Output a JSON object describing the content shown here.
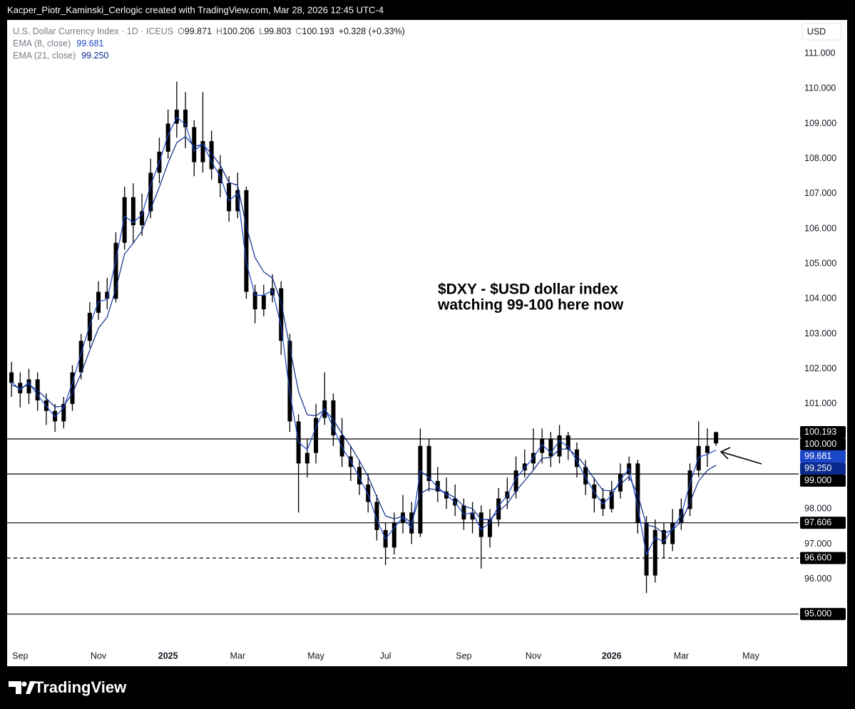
{
  "header": {
    "text": "Kacper_Piotr_Kaminski_Cerlogic created with TradingView.com, Mar 28, 2026 12:45 UTC-4"
  },
  "footer": {
    "logo": "TradingView"
  },
  "chart_data": {
    "type": "candlestick",
    "legend": {
      "symbol": "U.S. Dollar Currency Index · 1D · ICEUS",
      "open_prefix": "O",
      "high_prefix": "H",
      "low_prefix": "L",
      "close_prefix": "C",
      "change": "+0.328 (+0.33%)"
    },
    "currency": "USD",
    "annotation": [
      "$DXY - $USD dollar index",
      "watching 99-100 here now"
    ],
    "color": "#000000",
    "grid": false,
    "categories": [
      null,
      "Sep",
      null,
      null,
      null,
      null,
      null,
      null,
      null,
      null,
      "Nov",
      null,
      null,
      null,
      null,
      null,
      null,
      null,
      "2025",
      null,
      null,
      null,
      null,
      null,
      null,
      null,
      "Mar",
      null,
      null,
      null,
      null,
      null,
      null,
      null,
      null,
      "May",
      null,
      null,
      null,
      null,
      null,
      null,
      null,
      "Jul",
      null,
      null,
      null,
      null,
      null,
      null,
      null,
      null,
      "Sep",
      null,
      null,
      null,
      null,
      null,
      null,
      null,
      "Nov",
      null,
      null,
      null,
      null,
      null,
      null,
      null,
      null,
      "2026",
      null,
      null,
      null,
      null,
      null,
      null,
      null,
      "Mar",
      null,
      null,
      null,
      null,
      null,
      null,
      null,
      "May",
      null,
      null,
      null,
      null,
      null
    ],
    "open": [
      101.9,
      101.6,
      101.3,
      101.7,
      101.1,
      100.8,
      100.5,
      101.0,
      101.9,
      102.8,
      103.6,
      104.2,
      104.0,
      105.6,
      106.9,
      106.1,
      106.5,
      107.6,
      108.2,
      109.0,
      109.4,
      108.9,
      107.9,
      108.5,
      107.7,
      107.3,
      106.5,
      107.1,
      104.2,
      103.7,
      104.1,
      104.3,
      102.8,
      100.5,
      99.3,
      99.6,
      100.6,
      101.1,
      100.1,
      99.5,
      99.2,
      98.7,
      98.2,
      97.4,
      96.9,
      97.6,
      97.9,
      97.3,
      99.8,
      98.8,
      98.5,
      98.3,
      98.1,
      97.7,
      97.9,
      97.2,
      97.7,
      98.3,
      98.5,
      99.1,
      99.3,
      99.6,
      100.0,
      99.5,
      100.1,
      99.7,
      99.2,
      98.7,
      98.3,
      98.0,
      98.5,
      99.0,
      99.3,
      97.6,
      96.1,
      97.4,
      97.0,
      97.6,
      98.0,
      99.1,
      99.8,
      99.871,
      null,
      null,
      null,
      null,
      null,
      null,
      null,
      null,
      null
    ],
    "high": [
      102.2,
      101.9,
      102.0,
      101.9,
      101.3,
      101.0,
      101.2,
      102.1,
      103.0,
      103.9,
      104.5,
      104.6,
      105.9,
      107.2,
      107.3,
      107.0,
      108.0,
      108.6,
      109.4,
      110.2,
      109.9,
      109.1,
      109.9,
      108.8,
      108.1,
      107.5,
      107.6,
      107.2,
      104.4,
      104.4,
      104.7,
      104.5,
      103.0,
      100.7,
      100.0,
      101.0,
      101.9,
      101.3,
      100.6,
      99.8,
      99.4,
      99.0,
      98.4,
      97.6,
      97.9,
      98.4,
      98.2,
      100.3,
      100.0,
      99.2,
      98.9,
      98.7,
      98.3,
      98.2,
      98.1,
      98.0,
      98.6,
      98.9,
      99.5,
      99.7,
      100.3,
      100.3,
      100.2,
      100.4,
      100.2,
      99.9,
      99.4,
      98.9,
      98.6,
      98.8,
      99.3,
      99.5,
      99.4,
      97.8,
      97.7,
      97.6,
      98.0,
      98.3,
      99.3,
      100.5,
      100.3,
      100.206,
      null,
      null,
      null,
      null,
      null,
      null,
      null,
      null,
      null
    ],
    "low": [
      101.2,
      100.9,
      101.0,
      100.8,
      100.4,
      100.2,
      100.3,
      100.8,
      101.7,
      102.6,
      103.4,
      103.7,
      103.9,
      105.4,
      105.6,
      105.8,
      106.3,
      107.3,
      108.0,
      108.6,
      108.3,
      107.5,
      107.6,
      107.4,
      106.9,
      106.2,
      106.3,
      104.0,
      103.3,
      103.5,
      103.9,
      102.4,
      100.2,
      97.9,
      98.9,
      99.3,
      100.4,
      99.8,
      99.2,
      98.8,
      98.4,
      97.9,
      97.1,
      96.4,
      96.7,
      97.3,
      97.0,
      97.2,
      98.5,
      98.2,
      98.0,
      97.8,
      97.4,
      97.3,
      96.3,
      96.9,
      97.5,
      98.0,
      98.3,
      98.9,
      99.1,
      99.3,
      99.2,
      99.3,
      99.4,
      98.9,
      98.4,
      97.9,
      97.8,
      97.9,
      98.3,
      98.8,
      97.3,
      95.6,
      95.9,
      96.6,
      96.8,
      97.4,
      97.8,
      98.9,
      99.2,
      99.803,
      null,
      null,
      null,
      null,
      null,
      null,
      null,
      null,
      null
    ],
    "close": [
      101.6,
      101.3,
      101.7,
      101.1,
      100.8,
      100.5,
      101.0,
      101.9,
      102.8,
      103.6,
      104.2,
      104.0,
      105.6,
      106.9,
      106.1,
      106.5,
      107.6,
      108.2,
      109.0,
      109.4,
      108.9,
      107.9,
      108.5,
      107.7,
      107.3,
      106.5,
      107.1,
      104.2,
      103.7,
      104.1,
      104.3,
      102.8,
      100.5,
      99.3,
      99.6,
      100.6,
      101.1,
      100.1,
      99.5,
      99.2,
      98.7,
      98.2,
      97.4,
      96.9,
      97.6,
      97.9,
      97.3,
      99.8,
      98.8,
      98.5,
      98.3,
      98.1,
      97.7,
      97.9,
      97.2,
      97.7,
      98.3,
      98.5,
      99.1,
      99.3,
      99.6,
      100.0,
      99.5,
      100.1,
      99.7,
      99.2,
      98.7,
      98.3,
      98.0,
      98.5,
      99.0,
      99.3,
      97.6,
      96.1,
      97.4,
      97.0,
      97.6,
      98.0,
      99.1,
      99.8,
      99.6,
      100.193,
      null,
      null,
      null,
      null,
      null,
      null,
      null,
      null,
      null
    ],
    "series": [
      {
        "name": "EMA (8, close)",
        "color": "#1c47c9",
        "last_label": "99.681",
        "values": [
          101.63,
          101.4,
          101.61,
          101.25,
          100.94,
          100.63,
          100.89,
          101.6,
          102.44,
          103.25,
          103.92,
          103.98,
          105.11,
          106.36,
          106.18,
          106.4,
          107.24,
          107.91,
          108.67,
          109.18,
          108.98,
          108.22,
          108.42,
          107.92,
          107.49,
          106.8,
          107.01,
          105.04,
          104.1,
          104.1,
          104.24,
          103.23,
          101.32,
          99.91,
          99.69,
          100.33,
          100.87,
          100.33,
          99.75,
          99.37,
          98.9,
          98.41,
          97.7,
          97.14,
          97.46,
          97.77,
          97.44,
          99.09,
          98.89,
          98.62,
          98.4,
          98.19,
          97.85,
          97.89,
          97.41,
          97.61,
          98.09,
          98.38,
          98.88,
          99.17,
          99.47,
          99.84,
          99.6,
          99.95,
          99.78,
          99.37,
          98.9,
          98.48,
          98.14,
          98.39,
          98.82,
          99.16,
          98.07,
          96.69,
          97.19,
          97.06,
          97.44,
          97.83,
          98.72,
          99.48,
          99.56,
          99.681,
          null,
          null,
          null,
          null,
          null,
          null,
          null,
          null,
          null
        ]
      },
      {
        "name": "EMA (21, close)",
        "color": "#0b2a8c",
        "last_label": "99.250",
        "values": [
          101.54,
          101.45,
          101.55,
          101.38,
          101.16,
          100.91,
          100.94,
          101.3,
          101.87,
          102.53,
          103.16,
          103.48,
          104.29,
          105.28,
          105.59,
          105.94,
          106.57,
          107.19,
          107.88,
          108.46,
          108.63,
          108.35,
          108.41,
          108.14,
          107.82,
          107.32,
          107.24,
          106.08,
          105.18,
          104.77,
          104.59,
          103.91,
          102.61,
          101.35,
          100.69,
          100.66,
          100.83,
          100.55,
          100.15,
          99.79,
          99.38,
          98.93,
          98.35,
          97.8,
          97.72,
          97.79,
          97.6,
          98.44,
          98.58,
          98.55,
          98.46,
          98.32,
          98.08,
          98.01,
          97.7,
          97.7,
          97.93,
          98.15,
          98.51,
          98.81,
          99.11,
          99.45,
          99.47,
          99.71,
          99.71,
          99.52,
          99.21,
          98.86,
          98.53,
          98.52,
          98.7,
          98.93,
          98.42,
          97.54,
          97.49,
          97.3,
          97.41,
          97.63,
          98.19,
          98.8,
          99.1,
          99.25,
          null,
          null,
          null,
          null,
          null,
          null,
          null,
          null,
          null
        ]
      }
    ],
    "levels": [
      {
        "value": 100,
        "label": "100.000",
        "dashed": false
      },
      {
        "value": 99,
        "label": "99.000",
        "dashed": false
      },
      {
        "value": 97.606,
        "label": "97.606",
        "dashed": false
      },
      {
        "value": 96.6,
        "label": "96.600",
        "dashed": true
      },
      {
        "value": 95,
        "label": "95.000",
        "dashed": false
      }
    ],
    "ylim": [
      94.06,
      111.96
    ],
    "yticks": [
      {
        "value": 111,
        "label": "111.000"
      },
      {
        "value": 110,
        "label": "110.000"
      },
      {
        "value": 109,
        "label": "109.000"
      },
      {
        "value": 108,
        "label": "108.000"
      },
      {
        "value": 107,
        "label": "107.000"
      },
      {
        "value": 106,
        "label": "106.000"
      },
      {
        "value": 105,
        "label": "105.000"
      },
      {
        "value": 104,
        "label": "104.000"
      },
      {
        "value": 103,
        "label": "103.000"
      },
      {
        "value": 102,
        "label": "102.000"
      },
      {
        "value": 101,
        "label": "101.000"
      },
      {
        "value": 98,
        "label": "98.000"
      },
      {
        "value": 97,
        "label": "97.000"
      },
      {
        "value": 96,
        "label": "96.000"
      }
    ]
  }
}
